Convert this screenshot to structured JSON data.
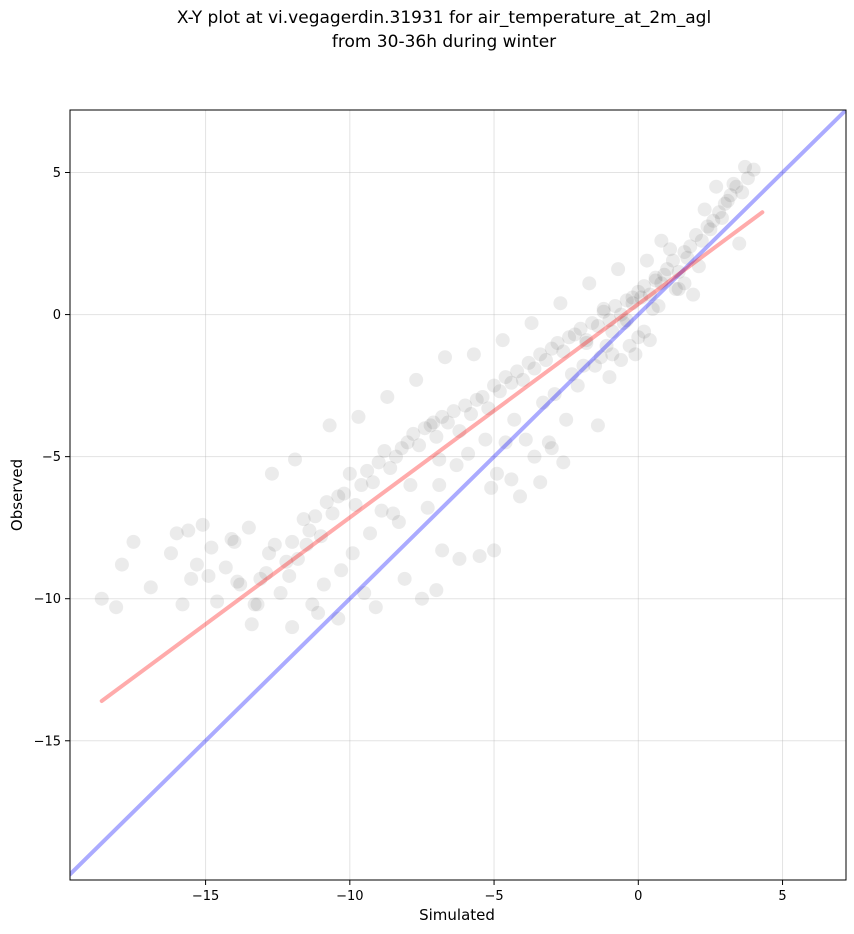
{
  "chart_data": {
    "type": "scatter",
    "title_lines": [
      "X-Y plot at vi.vegagerdin.31931 for air_temperature_at_2m_agl",
      "from 30-36h during winter"
    ],
    "xlabel": "Simulated",
    "ylabel": "Observed",
    "xlim": [
      -19.7,
      7.2
    ],
    "ylim": [
      -19.9,
      7.2
    ],
    "x_ticks": [
      -15,
      -10,
      -5,
      0,
      5
    ],
    "y_ticks": [
      -15,
      -10,
      -5,
      0,
      5
    ],
    "x_tick_labels": [
      "−15",
      "−10",
      "−5",
      "0",
      "5"
    ],
    "y_tick_labels": [
      "−15",
      "−10",
      "−5",
      "0",
      "5"
    ],
    "grid": true,
    "point_color": "#000000",
    "point_alpha": 0.08,
    "series": [
      {
        "kind": "reference_line_1to1",
        "color": "#0000ff",
        "alpha": 0.33,
        "x": [
          -19.7,
          7.2
        ],
        "y": [
          -19.7,
          7.2
        ]
      },
      {
        "kind": "regression_line",
        "color": "#ff0000",
        "alpha": 0.33,
        "x": [
          -18.6,
          4.3
        ],
        "y": [
          -13.6,
          3.6
        ]
      },
      {
        "kind": "points",
        "x": [
          -18.6,
          -17.5,
          -18.1,
          -16.9,
          -16.2,
          -15.8,
          -15.5,
          -15.3,
          -15.1,
          -14.9,
          -14.6,
          -14.3,
          -14.0,
          -13.8,
          -13.5,
          -13.3,
          -13.1,
          -12.9,
          -12.6,
          -12.4,
          -12.2,
          -12.0,
          -11.8,
          -11.6,
          -11.4,
          -11.2,
          -11.0,
          -10.8,
          -10.6,
          -10.4,
          -10.2,
          -10.0,
          -9.8,
          -9.6,
          -9.4,
          -9.2,
          -9.0,
          -8.8,
          -8.6,
          -8.4,
          -8.2,
          -8.0,
          -7.8,
          -7.6,
          -7.4,
          -7.2,
          -7.0,
          -6.8,
          -6.6,
          -6.4,
          -6.2,
          -6.0,
          -5.8,
          -5.6,
          -5.4,
          -5.2,
          -5.0,
          -4.8,
          -4.6,
          -4.4,
          -4.2,
          -4.0,
          -3.8,
          -3.6,
          -3.4,
          -3.2,
          -3.0,
          -2.8,
          -2.6,
          -2.4,
          -2.2,
          -2.0,
          -1.8,
          -1.6,
          -1.4,
          -1.2,
          -1.0,
          -0.8,
          -0.6,
          -0.4,
          -0.2,
          0.0,
          0.2,
          0.4,
          0.6,
          0.8,
          1.0,
          1.2,
          1.4,
          1.6,
          1.8,
          2.0,
          2.2,
          2.4,
          2.6,
          2.8,
          3.0,
          3.2,
          3.4,
          3.6,
          3.8,
          4.0,
          -17.9,
          -15.6,
          -14.8,
          -13.9,
          -13.2,
          -12.1,
          -11.5,
          -10.9,
          -10.3,
          -9.9,
          -9.3,
          -8.9,
          -8.3,
          -7.9,
          -7.3,
          -6.9,
          -6.3,
          -5.9,
          -5.3,
          -4.9,
          -4.3,
          -3.9,
          -3.3,
          -2.9,
          -2.3,
          -1.9,
          -1.3,
          -0.9,
          -0.3,
          0.1,
          0.5,
          0.9,
          1.3,
          1.7,
          2.1,
          2.5,
          2.9,
          3.3,
          3.7,
          -12.7,
          -11.9,
          -10.7,
          -9.7,
          -8.7,
          -7.7,
          -6.7,
          -5.7,
          -4.7,
          -3.7,
          -2.7,
          -1.7,
          -0.7,
          0.3,
          1.1,
          2.3,
          3.1,
          -1.1,
          -0.5,
          0.2,
          0.7,
          -1.5,
          -0.9,
          -0.2,
          0.4,
          -2.1,
          -1.2,
          -0.6,
          0.0,
          0.6,
          1.4,
          -3.1,
          -2.5,
          -1.8,
          -1.0,
          -0.4,
          0.8,
          1.6,
          2.7,
          -6.9,
          -7.1,
          -4.6,
          -4.4,
          -5.1,
          -3.6,
          -11.1,
          -12.0,
          -13.4,
          -6.2,
          -6.8,
          -8.1,
          -9.1,
          -10.4,
          -7.5,
          -5.5,
          -4.1,
          -3.4,
          -2.6,
          -1.4,
          -0.1,
          1.9,
          3.5,
          -16.0,
          -14.1,
          -12.8,
          -11.3,
          -9.5,
          -8.5,
          -7.0,
          -5.0,
          -3.0
        ],
        "y": [
          -10.0,
          -8.0,
          -10.3,
          -9.6,
          -8.4,
          -10.2,
          -9.3,
          -8.8,
          -7.4,
          -9.2,
          -10.1,
          -8.9,
          -8.0,
          -9.5,
          -7.5,
          -10.2,
          -9.3,
          -9.1,
          -8.1,
          -9.8,
          -8.7,
          -8.0,
          -8.6,
          -7.2,
          -7.6,
          -7.1,
          -7.8,
          -6.6,
          -7.0,
          -6.4,
          -6.3,
          -5.6,
          -6.7,
          -6.0,
          -5.5,
          -5.9,
          -5.2,
          -4.8,
          -5.4,
          -5.0,
          -4.7,
          -4.5,
          -4.2,
          -4.6,
          -4.0,
          -3.9,
          -4.3,
          -3.6,
          -3.8,
          -3.4,
          -4.1,
          -3.2,
          -3.5,
          -3.0,
          -2.9,
          -3.3,
          -2.5,
          -2.7,
          -2.2,
          -2.4,
          -2.0,
          -2.3,
          -1.7,
          -1.9,
          -1.4,
          -1.6,
          -1.2,
          -1.0,
          -1.3,
          -0.8,
          -0.7,
          -0.5,
          -0.9,
          -0.3,
          -0.4,
          0.1,
          -0.2,
          0.3,
          0.0,
          0.5,
          0.4,
          0.8,
          1.0,
          0.7,
          1.3,
          1.1,
          1.6,
          1.9,
          1.5,
          2.2,
          2.4,
          2.8,
          2.6,
          3.1,
          3.3,
          3.6,
          3.9,
          4.2,
          4.5,
          4.3,
          4.8,
          5.1,
          -8.8,
          -7.6,
          -8.2,
          -9.4,
          -10.2,
          -9.2,
          -8.1,
          -9.5,
          -9.0,
          -8.4,
          -7.7,
          -6.9,
          -7.3,
          -6.0,
          -6.8,
          -5.1,
          -5.3,
          -4.9,
          -4.4,
          -5.6,
          -3.7,
          -4.4,
          -3.1,
          -2.8,
          -2.1,
          -1.8,
          -1.5,
          -0.6,
          -1.1,
          0.6,
          0.2,
          1.4,
          0.9,
          2.0,
          1.7,
          3.0,
          3.4,
          4.6,
          5.2,
          -5.6,
          -5.1,
          -3.9,
          -3.6,
          -2.9,
          -2.3,
          -1.5,
          -1.4,
          -0.9,
          -0.3,
          0.4,
          1.1,
          1.6,
          1.9,
          2.3,
          3.7,
          4.0,
          -1.1,
          -0.3,
          -0.6,
          0.3,
          -1.8,
          -1.4,
          0.6,
          -0.9,
          -2.5,
          0.2,
          -1.6,
          -0.8,
          1.2,
          0.9,
          -4.5,
          -3.7,
          -1.0,
          -2.2,
          -0.2,
          2.6,
          1.1,
          4.5,
          -6.0,
          -3.8,
          -4.5,
          -5.8,
          -6.1,
          -5.0,
          -10.5,
          -11.0,
          -10.9,
          -8.6,
          -8.3,
          -9.3,
          -10.3,
          -10.7,
          -10.0,
          -8.5,
          -6.4,
          -5.9,
          -5.2,
          -3.9,
          -1.4,
          0.7,
          2.5,
          -7.7,
          -7.9,
          -8.4,
          -10.2,
          -9.8,
          -7.0,
          -9.7,
          -8.3,
          -4.7
        ]
      }
    ]
  }
}
